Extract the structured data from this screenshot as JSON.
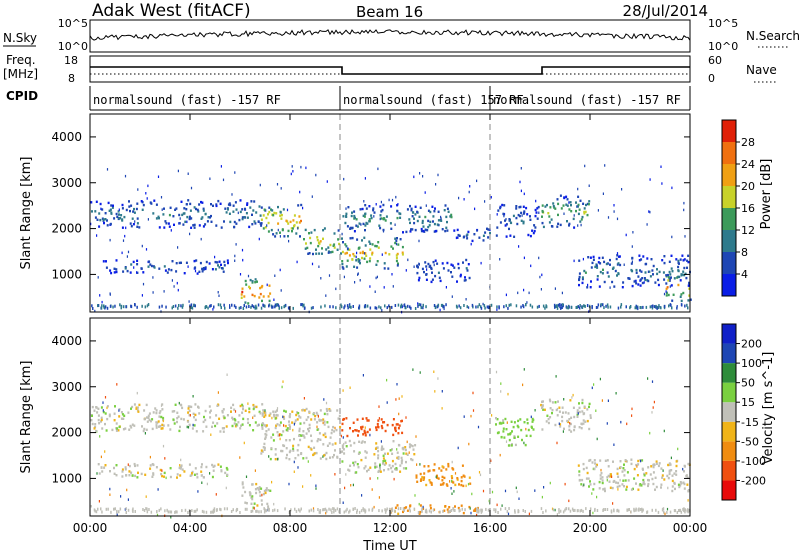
{
  "header": {
    "station": "Adak West (fitACF)",
    "beam": "Beam 16",
    "date": "28/Jul/2014"
  },
  "top_panels": {
    "nsky_label": "N.Sky",
    "nsky_ticks": [
      "10^5",
      "10^0"
    ],
    "nsearch_label": "N.Search",
    "nsearch_ticks": [
      "10^5",
      "10^0"
    ],
    "freq_label_1": "Freq.",
    "freq_label_2": "[MHz]",
    "freq_ticks": [
      "18",
      "8"
    ],
    "nave_label": "Nave",
    "nave_ticks": [
      "60",
      "0"
    ],
    "cpid_label": "CPID"
  },
  "cpid_segments": [
    {
      "start_h": 0,
      "end_h": 10,
      "text": "normalsound (fast) -157 RF"
    },
    {
      "start_h": 10,
      "end_h": 16,
      "text": "normalsound (fast) 157 RF"
    },
    {
      "start_h": 16,
      "end_h": 24,
      "text": "normalsound (fast) -157 RF"
    }
  ],
  "chart_data": [
    {
      "type": "heatmap",
      "quantity": "Power",
      "ylabel": "Slant Range [km]",
      "xlabel": "",
      "xlim_hours": [
        0,
        24
      ],
      "ylim_km": [
        180,
        4500
      ],
      "yticks": [
        "1000",
        "2000",
        "3000",
        "4000"
      ],
      "colorbar": {
        "label": "Power [dB]",
        "ticks": [
          "4",
          "8",
          "12",
          "16",
          "20",
          "24",
          "28"
        ],
        "colors": [
          "#0a1ee6",
          "#1e46b4",
          "#2e7a8c",
          "#3c9a5a",
          "#c8d22a",
          "#f0a014",
          "#f07010",
          "#e02008"
        ]
      },
      "echo_regions": [
        {
          "t0": 0.0,
          "t1": 7.0,
          "r0": 2000,
          "r1": 2600,
          "peak_db": 10
        },
        {
          "t0": 0.3,
          "t1": 5.5,
          "r0": 1000,
          "r1": 1300,
          "peak_db": 8
        },
        {
          "t0": 6.8,
          "t1": 8.5,
          "r0": 1800,
          "r1": 2500,
          "peak_db": 22
        },
        {
          "t0": 8.5,
          "t1": 10.0,
          "r0": 1400,
          "r1": 2000,
          "peak_db": 20
        },
        {
          "t0": 6.0,
          "t1": 7.2,
          "r0": 300,
          "r1": 900,
          "peak_db": 28
        },
        {
          "t0": 10.0,
          "t1": 12.5,
          "r0": 1100,
          "r1": 1800,
          "peak_db": 20
        },
        {
          "t0": 10.0,
          "t1": 14.5,
          "r0": 1900,
          "r1": 2500,
          "peak_db": 12
        },
        {
          "t0": 14.5,
          "t1": 16.0,
          "r0": 1700,
          "r1": 2000,
          "peak_db": 8
        },
        {
          "t0": 13.0,
          "t1": 15.2,
          "r0": 800,
          "r1": 1300,
          "peak_db": 8
        },
        {
          "t0": 16.2,
          "t1": 18.0,
          "r0": 1800,
          "r1": 2500,
          "peak_db": 8
        },
        {
          "t0": 18.0,
          "t1": 20.0,
          "r0": 2000,
          "r1": 2700,
          "peak_db": 16
        },
        {
          "t0": 19.5,
          "t1": 24.0,
          "r0": 700,
          "r1": 1400,
          "peak_db": 10
        },
        {
          "t0": 23.0,
          "t1": 24.0,
          "r0": 400,
          "r1": 1000,
          "peak_db": 24
        }
      ]
    },
    {
      "type": "heatmap",
      "quantity": "Velocity",
      "ylabel": "Slant Range [km]",
      "xlabel": "Time UT",
      "xlim_hours": [
        0,
        24
      ],
      "ylim_km": [
        180,
        4500
      ],
      "xticks": [
        "00:00",
        "04:00",
        "08:00",
        "12:00",
        "16:00",
        "20:00",
        "00:00"
      ],
      "yticks": [
        "1000",
        "2000",
        "3000",
        "4000"
      ],
      "colorbar": {
        "label": "Velocity [m s^-1]",
        "ticks": [
          "-200",
          "-100",
          "-50",
          "-15",
          "15",
          "50",
          "100",
          "200"
        ],
        "colors": [
          "#e80a0a",
          "#f05010",
          "#f08c10",
          "#f0b418",
          "#c0c0b8",
          "#7ad040",
          "#2e8c3a",
          "#1e46b4",
          "#1020c8"
        ]
      },
      "echo_regions": [
        {
          "t0": 0.0,
          "t1": 7.0,
          "r0": 2000,
          "r1": 2600,
          "vel": 0
        },
        {
          "t0": 0.3,
          "t1": 5.5,
          "r0": 1000,
          "r1": 1300,
          "vel": 0
        },
        {
          "t0": 6.8,
          "t1": 10.0,
          "r0": 1400,
          "r1": 2500,
          "vel": 0
        },
        {
          "t0": 6.0,
          "t1": 7.2,
          "r0": 300,
          "r1": 900,
          "vel": 0
        },
        {
          "t0": 10.0,
          "t1": 12.5,
          "r0": 1900,
          "r1": 2300,
          "vel": -150
        },
        {
          "t0": 10.0,
          "t1": 13.0,
          "r0": 1100,
          "r1": 1800,
          "vel": 0
        },
        {
          "t0": 13.0,
          "t1": 15.2,
          "r0": 800,
          "r1": 1300,
          "vel": -60
        },
        {
          "t0": 12.0,
          "t1": 15.5,
          "r0": 200,
          "r1": 400,
          "vel": -60
        },
        {
          "t0": 16.2,
          "t1": 17.8,
          "r0": 1700,
          "r1": 2300,
          "vel": 30
        },
        {
          "t0": 18.0,
          "t1": 20.0,
          "r0": 2000,
          "r1": 2700,
          "vel": 0
        },
        {
          "t0": 19.5,
          "t1": 24.0,
          "r0": 700,
          "r1": 1400,
          "vel": 0
        }
      ]
    }
  ]
}
